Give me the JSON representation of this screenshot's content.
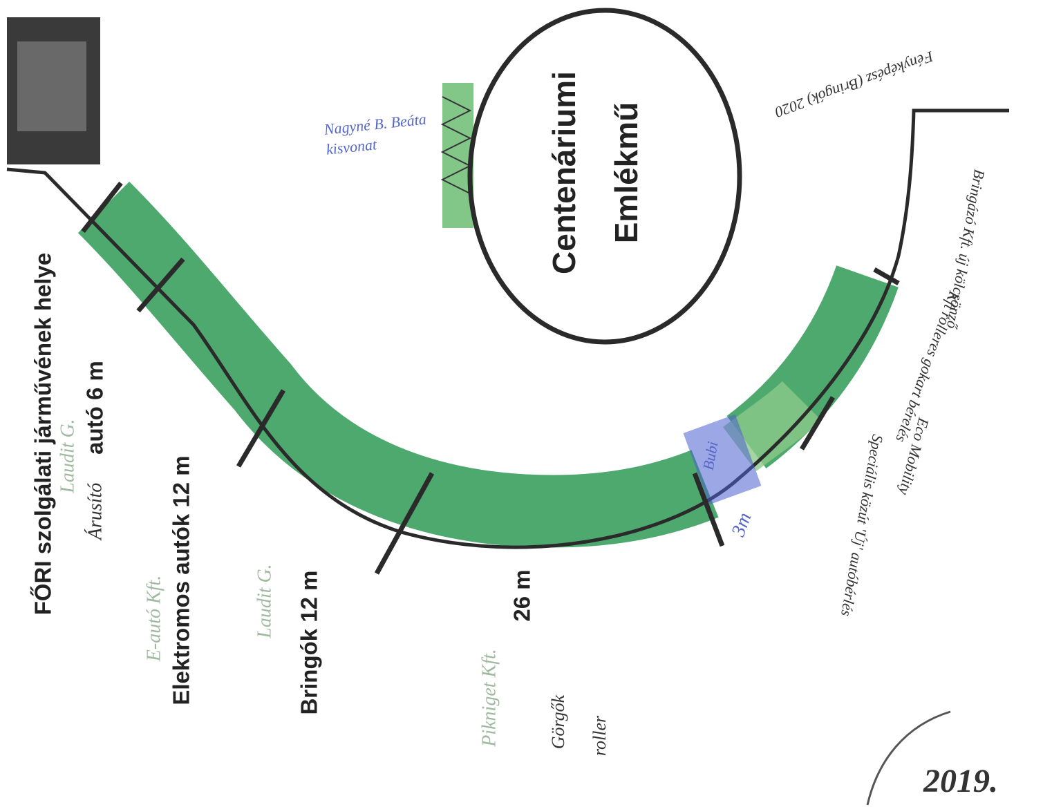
{
  "monument": {
    "title": [
      "Centenáriumi",
      "Emlékmű"
    ]
  },
  "zones": [
    {
      "label": "FŐRI szolgálati járművének helye",
      "tenant": "Laudit G."
    },
    {
      "label": "autó 6 m",
      "note": "Árusító"
    },
    {
      "label": "Elektromos autók 12 m",
      "tenant": "E-autó Kft."
    },
    {
      "label": "Bringók 12 m",
      "tenant": "Laudit G."
    },
    {
      "label": "26 m",
      "tenant": "Pikniget Kft."
    }
  ],
  "train": "Nagyné B. Beáta kisvonat",
  "bubi": {
    "label": "Bubi",
    "size": "3m"
  },
  "extras": [
    "Görgők",
    "roller"
  ],
  "right_notes": [
    "Bringázó Kft. új kölcsönző",
    "Kft rolleres gokart bérelés",
    "Eco Mobility",
    "Speciális közút 'Új' autóbérlés",
    "Fényképész (Bringók) 2020"
  ],
  "date": "2019."
}
